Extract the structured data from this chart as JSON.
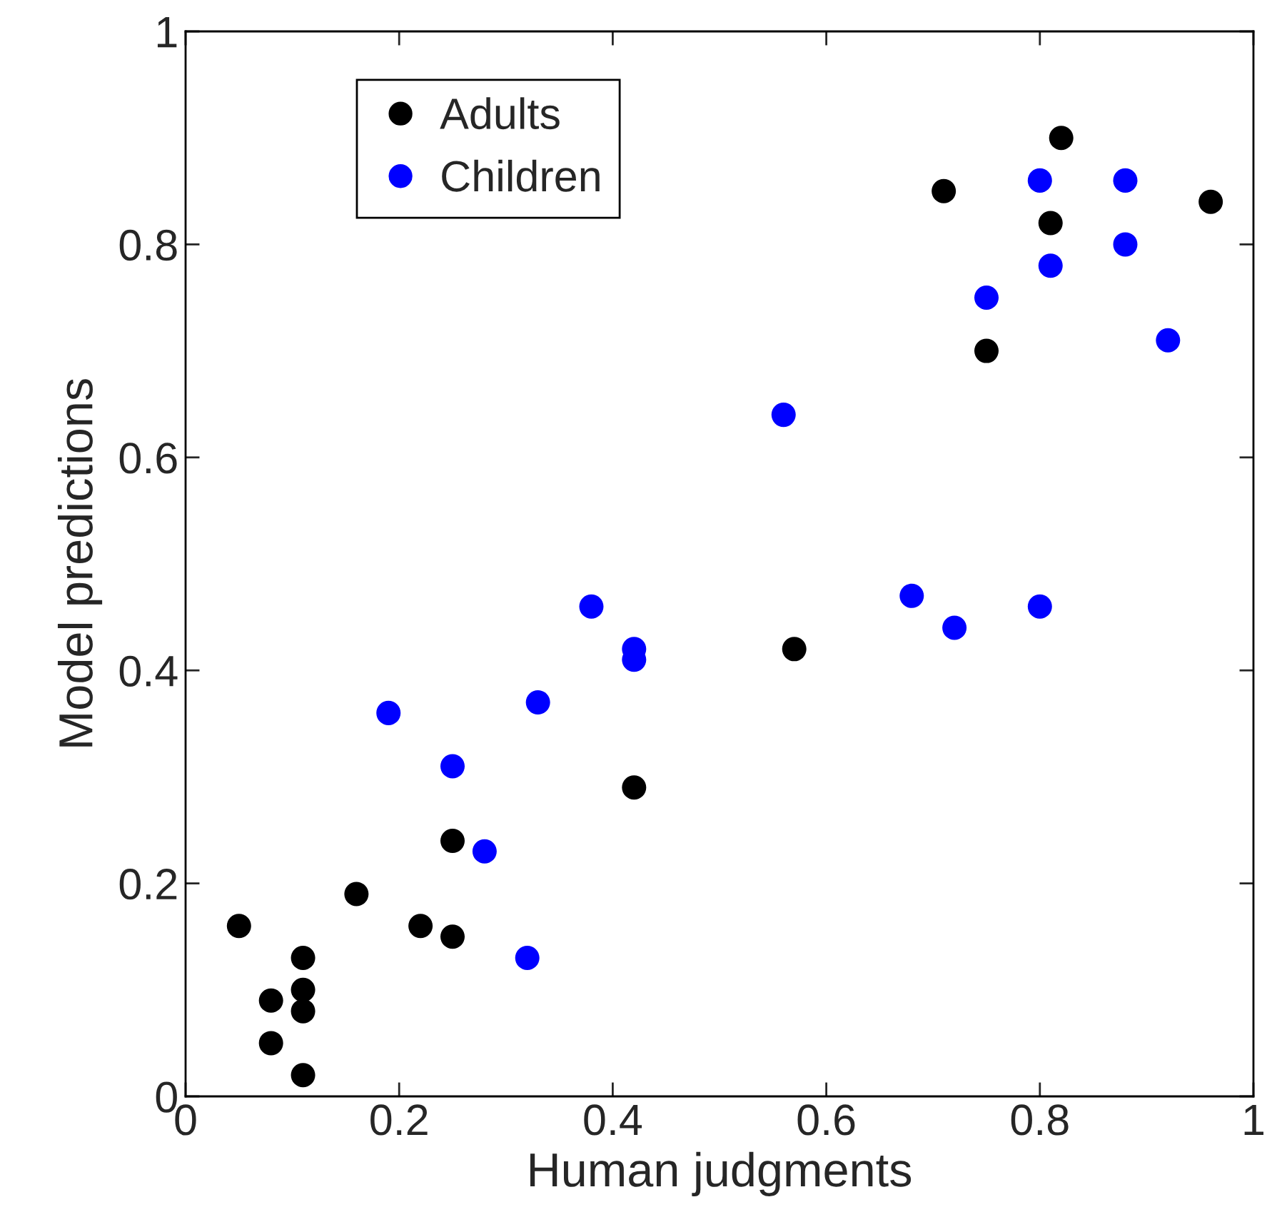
{
  "chart_data": {
    "type": "scatter",
    "xlabel": "Human judgments",
    "ylabel": "Model predictions",
    "xlim": [
      0,
      1
    ],
    "ylim": [
      0,
      1
    ],
    "xticks": [
      0,
      0.2,
      0.4,
      0.6,
      0.8,
      1
    ],
    "yticks": [
      0,
      0.2,
      0.4,
      0.6,
      0.8,
      1
    ],
    "grid": false,
    "legend": "top left",
    "marker": "circle",
    "series": [
      {
        "name": "Adults",
        "color": "#000000",
        "x": [
          0.05,
          0.08,
          0.08,
          0.11,
          0.11,
          0.11,
          0.11,
          0.16,
          0.22,
          0.25,
          0.25,
          0.42,
          0.57,
          0.71,
          0.75,
          0.81,
          0.82,
          0.96
        ],
        "values": [
          0.16,
          0.09,
          0.05,
          0.13,
          0.1,
          0.08,
          0.02,
          0.19,
          0.16,
          0.24,
          0.15,
          0.29,
          0.42,
          0.85,
          0.7,
          0.82,
          0.9,
          0.84
        ]
      },
      {
        "name": "Children",
        "color": "#0000ff",
        "x": [
          0.19,
          0.25,
          0.28,
          0.32,
          0.33,
          0.38,
          0.42,
          0.42,
          0.56,
          0.68,
          0.72,
          0.75,
          0.8,
          0.8,
          0.81,
          0.88,
          0.88,
          0.92
        ],
        "values": [
          0.36,
          0.31,
          0.23,
          0.13,
          0.37,
          0.46,
          0.42,
          0.41,
          0.64,
          0.47,
          0.44,
          0.75,
          0.46,
          0.86,
          0.78,
          0.86,
          0.8,
          0.71
        ]
      }
    ]
  }
}
